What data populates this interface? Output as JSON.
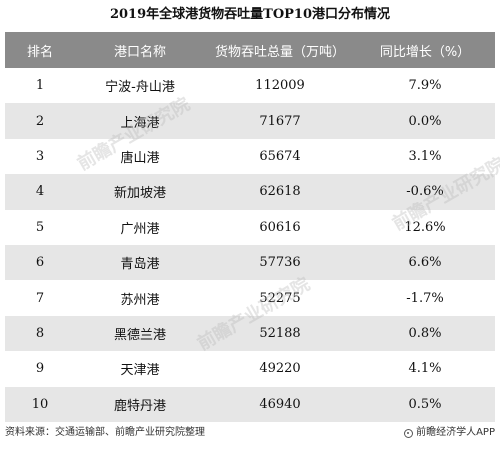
{
  "chart_data": {
    "type": "table",
    "title": "2019年全球港货物吞吐量TOP10港口分布情况",
    "columns": [
      "排名",
      "港口名称",
      "货物吞吐总量（万吨）",
      "同比增长（%）"
    ],
    "rows": [
      {
        "rank": "1",
        "port": "宁波-舟山港",
        "throughput": "112009",
        "growth": "7.9%"
      },
      {
        "rank": "2",
        "port": "上海港",
        "throughput": "71677",
        "growth": "0.0%"
      },
      {
        "rank": "3",
        "port": "唐山港",
        "throughput": "65674",
        "growth": "3.1%"
      },
      {
        "rank": "4",
        "port": "新加坡港",
        "throughput": "62618",
        "growth": "-0.6%"
      },
      {
        "rank": "5",
        "port": "广州港",
        "throughput": "60616",
        "growth": "12.6%"
      },
      {
        "rank": "6",
        "port": "青岛港",
        "throughput": "57736",
        "growth": "6.6%"
      },
      {
        "rank": "7",
        "port": "苏州港",
        "throughput": "52275",
        "growth": "-1.7%"
      },
      {
        "rank": "8",
        "port": "黑德兰港",
        "throughput": "52188",
        "growth": "0.8%"
      },
      {
        "rank": "9",
        "port": "天津港",
        "throughput": "49220",
        "growth": "4.1%"
      },
      {
        "rank": "10",
        "port": "鹿特丹港",
        "throughput": "46940",
        "growth": "0.5%"
      }
    ]
  },
  "footer": {
    "source": "资料来源：交通运输部、前瞻产业研究院整理",
    "brand": "前瞻经济学人APP"
  },
  "watermark_text": "前瞻产业研究院",
  "colors": {
    "header_bg": "#8a8a8a",
    "stripe_bg": "#e6e6e6"
  }
}
